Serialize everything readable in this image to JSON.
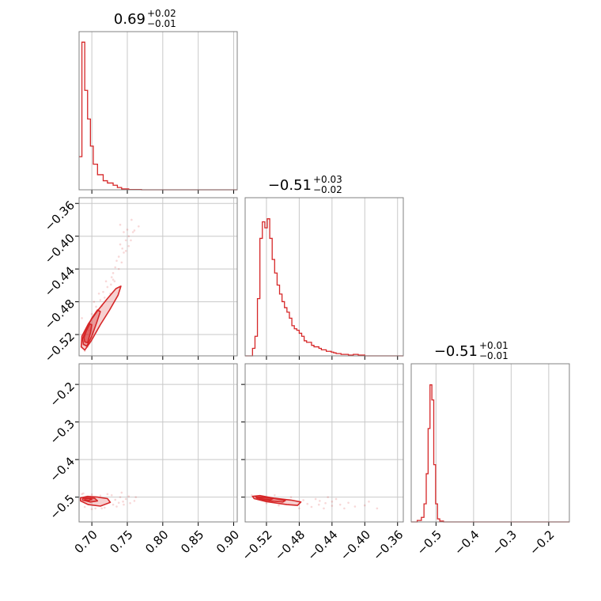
{
  "figure": {
    "type": "corner_plot",
    "accent_color": "#d62728",
    "grid": true
  },
  "chart_data": [
    {
      "id": "p0-hist",
      "type": "histogram",
      "title": {
        "main": "0.69",
        "sup": "+0.02",
        "sub": "−0.01"
      },
      "xlim": [
        0.682,
        0.905
      ],
      "x_ticks": [
        0.7,
        0.75,
        0.8,
        0.85,
        0.9
      ],
      "show_x_tick_labels": false,
      "show_y_tick_labels": false,
      "bins": [
        [
          0.682,
          0.686,
          0.22
        ],
        [
          0.686,
          0.69,
          0.98
        ],
        [
          0.69,
          0.694,
          0.66
        ],
        [
          0.694,
          0.698,
          0.47
        ],
        [
          0.698,
          0.702,
          0.29
        ],
        [
          0.702,
          0.708,
          0.17
        ],
        [
          0.708,
          0.716,
          0.1
        ],
        [
          0.716,
          0.722,
          0.06
        ],
        [
          0.722,
          0.73,
          0.045
        ],
        [
          0.73,
          0.736,
          0.03
        ],
        [
          0.736,
          0.742,
          0.015
        ],
        [
          0.742,
          0.752,
          0.006
        ],
        [
          0.752,
          0.77,
          0.002
        ],
        [
          0.77,
          0.905,
          0.0
        ]
      ]
    },
    {
      "id": "p1-vs-p0",
      "type": "scatter_density",
      "xlim": [
        0.682,
        0.905
      ],
      "ylim": [
        -0.546,
        -0.353
      ],
      "x_ticks": [
        0.7,
        0.75,
        0.8,
        0.85,
        0.9
      ],
      "y_ticks": [
        -0.36,
        -0.4,
        -0.44,
        -0.48,
        -0.52
      ],
      "y_tick_labels": [
        "−0.36",
        "−0.40",
        "−0.44",
        "−0.48",
        "−0.52"
      ],
      "show_x_tick_labels": false,
      "contours": [
        [
          [
            0.685,
            -0.535
          ],
          [
            0.69,
            -0.539
          ],
          [
            0.699,
            -0.528
          ],
          [
            0.712,
            -0.508
          ],
          [
            0.725,
            -0.49
          ],
          [
            0.737,
            -0.472
          ],
          [
            0.741,
            -0.461
          ],
          [
            0.734,
            -0.464
          ],
          [
            0.722,
            -0.476
          ],
          [
            0.708,
            -0.491
          ],
          [
            0.695,
            -0.507
          ],
          [
            0.686,
            -0.522
          ]
        ],
        [
          [
            0.688,
            -0.532
          ],
          [
            0.693,
            -0.534
          ],
          [
            0.7,
            -0.522
          ],
          [
            0.707,
            -0.505
          ],
          [
            0.712,
            -0.492
          ],
          [
            0.708,
            -0.49
          ],
          [
            0.7,
            -0.5
          ],
          [
            0.692,
            -0.514
          ],
          [
            0.687,
            -0.525
          ]
        ],
        [
          [
            0.69,
            -0.529
          ],
          [
            0.694,
            -0.53
          ],
          [
            0.698,
            -0.518
          ],
          [
            0.7,
            -0.508
          ],
          [
            0.697,
            -0.507
          ],
          [
            0.692,
            -0.516
          ],
          [
            0.689,
            -0.524
          ]
        ]
      ],
      "points": [
        [
          0.73,
          -0.445
        ],
        [
          0.73,
          -0.453
        ],
        [
          0.727,
          -0.459
        ],
        [
          0.735,
          -0.43
        ],
        [
          0.745,
          -0.42
        ],
        [
          0.748,
          -0.405
        ],
        [
          0.752,
          -0.4
        ],
        [
          0.745,
          -0.395
        ],
        [
          0.74,
          -0.41
        ],
        [
          0.75,
          -0.392
        ],
        [
          0.756,
          -0.38
        ],
        [
          0.76,
          -0.393
        ],
        [
          0.738,
          -0.425
        ],
        [
          0.733,
          -0.438
        ],
        [
          0.743,
          -0.415
        ],
        [
          0.722,
          -0.462
        ],
        [
          0.716,
          -0.468
        ],
        [
          0.712,
          -0.478
        ],
        [
          0.706,
          -0.486
        ],
        [
          0.7,
          -0.495
        ],
        [
          0.718,
          -0.475
        ],
        [
          0.726,
          -0.47
        ],
        [
          0.732,
          -0.455
        ],
        [
          0.738,
          -0.44
        ],
        [
          0.755,
          -0.405
        ],
        [
          0.742,
          -0.432
        ],
        [
          0.748,
          -0.418
        ],
        [
          0.758,
          -0.395
        ],
        [
          0.766,
          -0.388
        ],
        [
          0.74,
          -0.386
        ],
        [
          0.694,
          -0.535
        ],
        [
          0.69,
          -0.54
        ],
        [
          0.686,
          -0.5
        ],
        [
          0.703,
          -0.48
        ],
        [
          0.72,
          -0.455
        ],
        [
          0.71,
          -0.47
        ],
        [
          0.696,
          -0.515
        ],
        [
          0.714,
          -0.485
        ],
        [
          0.728,
          -0.45
        ],
        [
          0.752,
          -0.412
        ]
      ]
    },
    {
      "id": "p1-hist",
      "type": "histogram",
      "title": {
        "main": "−0.51",
        "sup": "+0.03",
        "sub": "−0.02"
      },
      "xlim": [
        -0.546,
        -0.353
      ],
      "x_ticks": [
        -0.52,
        -0.48,
        -0.44,
        -0.4,
        -0.36
      ],
      "show_x_tick_labels": false,
      "show_y_tick_labels": false,
      "bins": [
        [
          -0.546,
          -0.537,
          0.0
        ],
        [
          -0.537,
          -0.534,
          0.05
        ],
        [
          -0.534,
          -0.531,
          0.13
        ],
        [
          -0.531,
          -0.528,
          0.38
        ],
        [
          -0.528,
          -0.525,
          0.78
        ],
        [
          -0.525,
          -0.522,
          0.89
        ],
        [
          -0.522,
          -0.519,
          0.85
        ],
        [
          -0.519,
          -0.516,
          0.91
        ],
        [
          -0.516,
          -0.513,
          0.78
        ],
        [
          -0.513,
          -0.51,
          0.64
        ],
        [
          -0.51,
          -0.507,
          0.55
        ],
        [
          -0.507,
          -0.504,
          0.47
        ],
        [
          -0.504,
          -0.501,
          0.41
        ],
        [
          -0.501,
          -0.498,
          0.36
        ],
        [
          -0.498,
          -0.495,
          0.32
        ],
        [
          -0.495,
          -0.492,
          0.29
        ],
        [
          -0.492,
          -0.489,
          0.25
        ],
        [
          -0.489,
          -0.486,
          0.2
        ],
        [
          -0.486,
          -0.483,
          0.18
        ],
        [
          -0.483,
          -0.48,
          0.17
        ],
        [
          -0.48,
          -0.477,
          0.15
        ],
        [
          -0.477,
          -0.474,
          0.13
        ],
        [
          -0.474,
          -0.471,
          0.1
        ],
        [
          -0.471,
          -0.468,
          0.09
        ],
        [
          -0.468,
          -0.465,
          0.09
        ],
        [
          -0.465,
          -0.462,
          0.07
        ],
        [
          -0.462,
          -0.459,
          0.06
        ],
        [
          -0.459,
          -0.456,
          0.06
        ],
        [
          -0.456,
          -0.453,
          0.05
        ],
        [
          -0.453,
          -0.45,
          0.04
        ],
        [
          -0.45,
          -0.447,
          0.04
        ],
        [
          -0.447,
          -0.444,
          0.03
        ],
        [
          -0.444,
          -0.441,
          0.03
        ],
        [
          -0.441,
          -0.438,
          0.025
        ],
        [
          -0.438,
          -0.435,
          0.02
        ],
        [
          -0.435,
          -0.432,
          0.015
        ],
        [
          -0.432,
          -0.429,
          0.015
        ],
        [
          -0.429,
          -0.426,
          0.01
        ],
        [
          -0.426,
          -0.42,
          0.01
        ],
        [
          -0.42,
          -0.414,
          0.005
        ],
        [
          -0.414,
          -0.408,
          0.01
        ],
        [
          -0.408,
          -0.4,
          0.005
        ],
        [
          -0.4,
          -0.353,
          0.0
        ]
      ]
    },
    {
      "id": "p2-vs-p0",
      "type": "scatter_density",
      "xlim": [
        0.682,
        0.905
      ],
      "ylim": [
        -0.566,
        -0.145
      ],
      "x_ticks": [
        0.7,
        0.75,
        0.8,
        0.85,
        0.9
      ],
      "x_tick_labels": [
        "0.70",
        "0.75",
        "0.80",
        "0.85",
        "0.90"
      ],
      "y_ticks": [
        -0.2,
        -0.3,
        -0.4,
        -0.5
      ],
      "y_tick_labels": [
        "−0.2",
        "−0.3",
        "−0.4",
        "−0.5"
      ],
      "contours": [
        [
          [
            0.684,
            -0.51
          ],
          [
            0.695,
            -0.52
          ],
          [
            0.712,
            -0.524
          ],
          [
            0.726,
            -0.514
          ],
          [
            0.722,
            -0.504
          ],
          [
            0.708,
            -0.5
          ],
          [
            0.694,
            -0.498
          ],
          [
            0.684,
            -0.502
          ]
        ],
        [
          [
            0.687,
            -0.508
          ],
          [
            0.698,
            -0.513
          ],
          [
            0.708,
            -0.51
          ],
          [
            0.704,
            -0.503
          ],
          [
            0.693,
            -0.502
          ],
          [
            0.687,
            -0.504
          ]
        ],
        [
          [
            0.69,
            -0.507
          ],
          [
            0.696,
            -0.509
          ],
          [
            0.7,
            -0.506
          ],
          [
            0.695,
            -0.503
          ],
          [
            0.69,
            -0.504
          ]
        ]
      ],
      "points": [
        [
          0.688,
          -0.49
        ],
        [
          0.7,
          -0.493
        ],
        [
          0.712,
          -0.496
        ],
        [
          0.725,
          -0.512
        ],
        [
          0.733,
          -0.507
        ],
        [
          0.74,
          -0.5
        ],
        [
          0.745,
          -0.52
        ],
        [
          0.752,
          -0.498
        ],
        [
          0.76,
          -0.51
        ],
        [
          0.735,
          -0.525
        ],
        [
          0.718,
          -0.528
        ],
        [
          0.705,
          -0.53
        ],
        [
          0.69,
          -0.526
        ],
        [
          0.728,
          -0.495
        ],
        [
          0.748,
          -0.505
        ],
        [
          0.738,
          -0.515
        ],
        [
          0.722,
          -0.492
        ],
        [
          0.714,
          -0.53
        ],
        [
          0.762,
          -0.5
        ],
        [
          0.7,
          -0.532
        ],
        [
          0.742,
          -0.488
        ],
        [
          0.73,
          -0.52
        ],
        [
          0.754,
          -0.516
        ],
        [
          0.744,
          -0.512
        ],
        [
          0.686,
          -0.492
        ]
      ]
    },
    {
      "id": "p2-vs-p1",
      "type": "scatter_density",
      "xlim": [
        -0.546,
        -0.353
      ],
      "ylim": [
        -0.566,
        -0.145
      ],
      "x_ticks": [
        -0.52,
        -0.48,
        -0.44,
        -0.4,
        -0.36
      ],
      "x_tick_labels": [
        "−0.52",
        "−0.48",
        "−0.44",
        "−0.40",
        "−0.36"
      ],
      "y_ticks": [
        -0.2,
        -0.3,
        -0.4,
        -0.5
      ],
      "show_y_tick_labels": false,
      "contours": [
        [
          [
            -0.537,
            -0.498
          ],
          [
            -0.535,
            -0.504
          ],
          [
            -0.52,
            -0.512
          ],
          [
            -0.495,
            -0.52
          ],
          [
            -0.482,
            -0.522
          ],
          [
            -0.478,
            -0.513
          ],
          [
            -0.49,
            -0.508
          ],
          [
            -0.51,
            -0.503
          ],
          [
            -0.528,
            -0.496
          ]
        ],
        [
          [
            -0.533,
            -0.5
          ],
          [
            -0.53,
            -0.505
          ],
          [
            -0.515,
            -0.51
          ],
          [
            -0.5,
            -0.513
          ],
          [
            -0.497,
            -0.509
          ],
          [
            -0.51,
            -0.504
          ],
          [
            -0.525,
            -0.5
          ]
        ],
        [
          [
            -0.53,
            -0.501
          ],
          [
            -0.527,
            -0.504
          ],
          [
            -0.515,
            -0.507
          ],
          [
            -0.512,
            -0.504
          ],
          [
            -0.522,
            -0.501
          ]
        ]
      ],
      "points": [
        [
          -0.455,
          -0.51
        ],
        [
          -0.448,
          -0.516
        ],
        [
          -0.46,
          -0.505
        ],
        [
          -0.44,
          -0.512
        ],
        [
          -0.43,
          -0.52
        ],
        [
          -0.47,
          -0.518
        ],
        [
          -0.465,
          -0.526
        ],
        [
          -0.44,
          -0.523
        ],
        [
          -0.42,
          -0.515
        ],
        [
          -0.412,
          -0.525
        ],
        [
          -0.4,
          -0.522
        ],
        [
          -0.385,
          -0.53
        ],
        [
          -0.395,
          -0.512
        ],
        [
          -0.475,
          -0.508
        ],
        [
          -0.45,
          -0.53
        ],
        [
          -0.435,
          -0.505
        ],
        [
          -0.425,
          -0.53
        ],
        [
          -0.48,
          -0.53
        ],
        [
          -0.505,
          -0.522
        ],
        [
          -0.52,
          -0.516
        ],
        [
          -0.49,
          -0.5
        ],
        [
          -0.51,
          -0.495
        ],
        [
          -0.538,
          -0.495
        ],
        [
          -0.456,
          -0.52
        ],
        [
          -0.445,
          -0.5
        ]
      ]
    },
    {
      "id": "p2-hist",
      "type": "histogram",
      "title": {
        "main": "−0.51",
        "sup": "+0.01",
        "sub": "−0.01"
      },
      "xlim": [
        -0.566,
        -0.145
      ],
      "x_ticks": [
        -0.5,
        -0.4,
        -0.3,
        -0.2
      ],
      "x_tick_labels": [
        "−0.5",
        "−0.4",
        "−0.3",
        "−0.2"
      ],
      "show_y_tick_labels": false,
      "bins": [
        [
          -0.566,
          -0.55,
          0.0
        ],
        [
          -0.55,
          -0.539,
          0.01
        ],
        [
          -0.539,
          -0.532,
          0.03
        ],
        [
          -0.532,
          -0.526,
          0.12
        ],
        [
          -0.526,
          -0.521,
          0.32
        ],
        [
          -0.521,
          -0.516,
          0.62
        ],
        [
          -0.516,
          -0.511,
          0.91
        ],
        [
          -0.511,
          -0.506,
          0.81
        ],
        [
          -0.506,
          -0.501,
          0.38
        ],
        [
          -0.501,
          -0.496,
          0.12
        ],
        [
          -0.496,
          -0.49,
          0.02
        ],
        [
          -0.49,
          -0.48,
          0.006
        ],
        [
          -0.48,
          -0.145,
          0.0
        ]
      ]
    }
  ]
}
